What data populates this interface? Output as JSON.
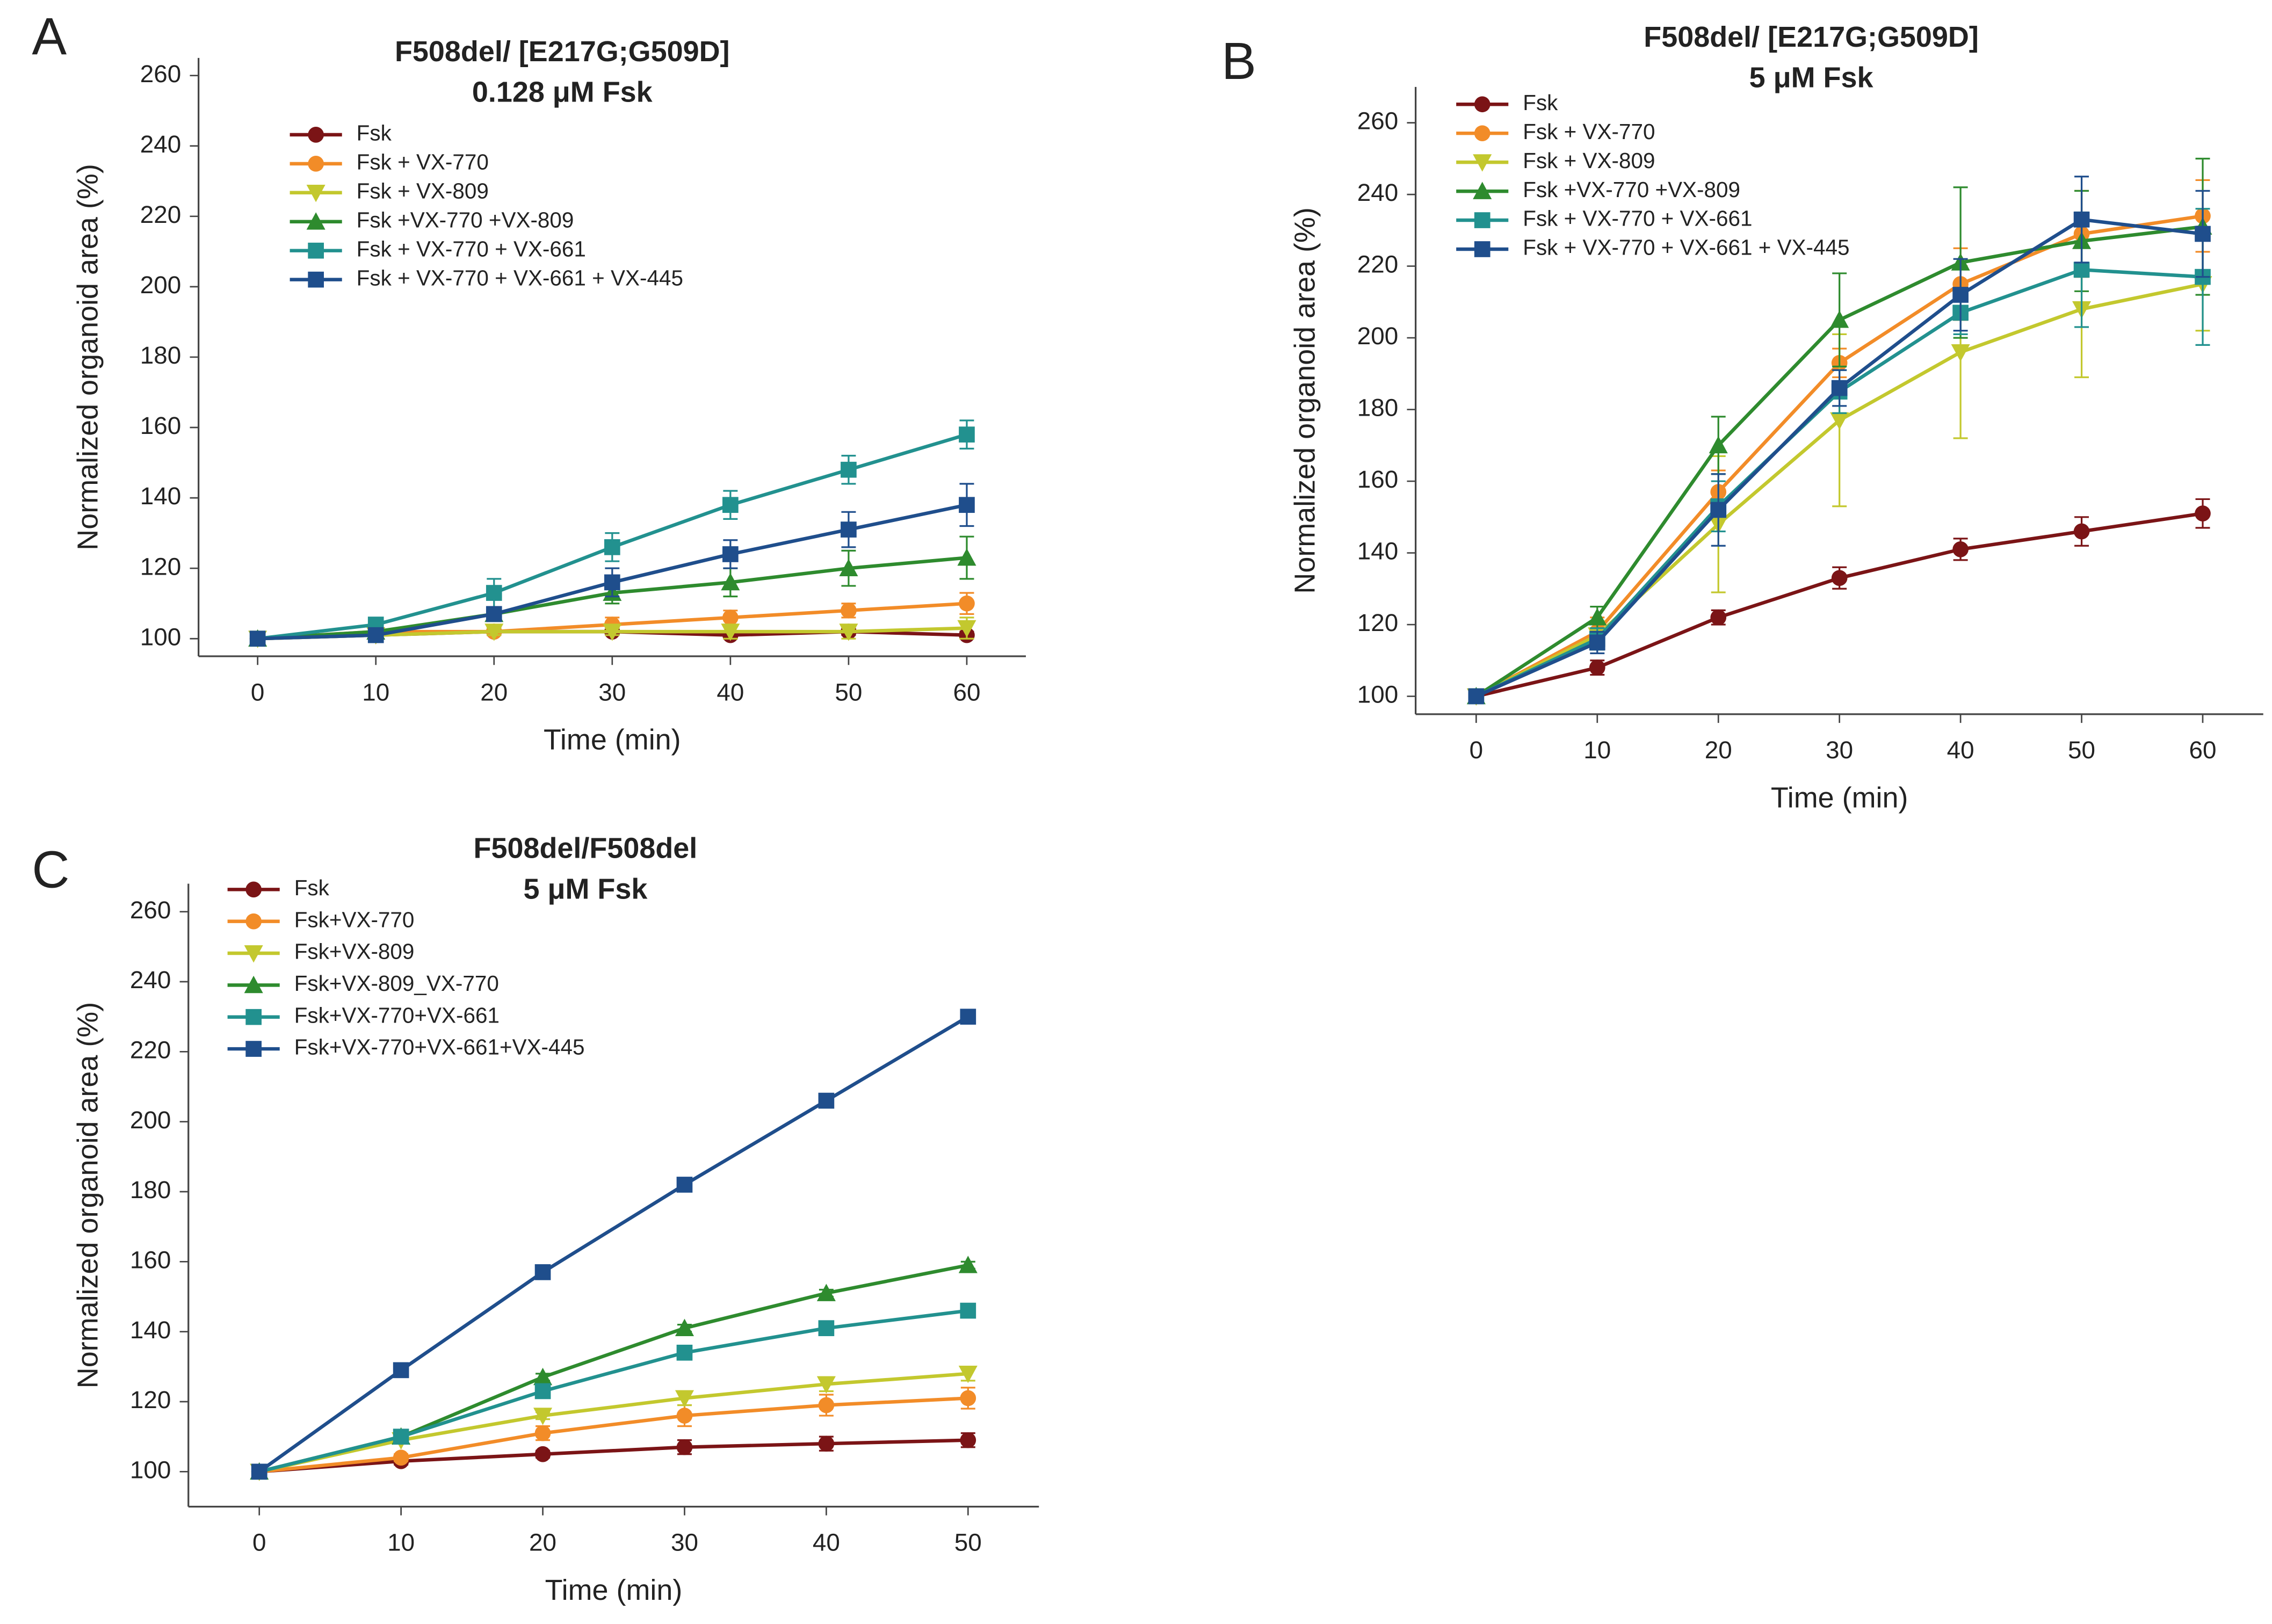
{
  "chart_data": [
    {
      "type": "line",
      "label": "A",
      "title": "F508del/ [E217G;G509D]",
      "subtitle": "0.128 μM Fsk",
      "x_label": "Time (min)",
      "y_label": "Normalized organoid area (%)",
      "x": [
        0,
        10,
        20,
        30,
        40,
        50,
        60
      ],
      "xlim": [
        -5,
        65
      ],
      "xticks": [
        0,
        10,
        20,
        30,
        40,
        50,
        60
      ],
      "ylim": [
        95,
        265
      ],
      "yticks": [
        100,
        120,
        140,
        160,
        180,
        200,
        220,
        240,
        260
      ],
      "series": [
        {
          "name": "Fsk",
          "color": "#7b1416",
          "marker": "circle",
          "values": [
            100,
            101,
            102,
            102,
            101,
            102,
            101
          ],
          "errors": [
            1,
            1,
            1,
            1,
            1,
            1,
            1
          ]
        },
        {
          "name": "Fsk + VX-770",
          "color": "#f28c28",
          "marker": "circle",
          "values": [
            100,
            102,
            102,
            104,
            106,
            108,
            110
          ],
          "errors": [
            1,
            1,
            1,
            2,
            2,
            2,
            3
          ]
        },
        {
          "name": "Fsk + VX-809",
          "color": "#c3c82e",
          "marker": "triangle-down",
          "values": [
            100,
            101,
            102,
            102,
            102,
            102,
            103
          ],
          "errors": [
            1,
            1,
            1,
            1,
            2,
            2,
            3
          ]
        },
        {
          "name": "Fsk +VX-770 +VX-809",
          "color": "#2e8b2e",
          "marker": "triangle-up",
          "values": [
            100,
            102,
            107,
            113,
            116,
            120,
            123
          ],
          "errors": [
            1,
            1,
            2,
            3,
            4,
            5,
            6
          ]
        },
        {
          "name": "Fsk + VX-770 + VX-661",
          "color": "#22918f",
          "marker": "square",
          "values": [
            100,
            104,
            113,
            126,
            138,
            148,
            158
          ],
          "errors": [
            1,
            1,
            4,
            4,
            4,
            4,
            4
          ]
        },
        {
          "name": "Fsk + VX-770 + VX-661 + VX-445",
          "color": "#1f4e8c",
          "marker": "square",
          "values": [
            100,
            101,
            107,
            116,
            124,
            131,
            138
          ],
          "errors": [
            1,
            1,
            2,
            4,
            4,
            5,
            6
          ]
        }
      ]
    },
    {
      "type": "line",
      "label": "B",
      "title": "F508del/ [E217G;G509D]",
      "subtitle": "5 μM Fsk",
      "x_label": "Time (min)",
      "y_label": "Normalized organoid area (%)",
      "x": [
        0,
        10,
        20,
        30,
        40,
        50,
        60
      ],
      "xlim": [
        -5,
        65
      ],
      "xticks": [
        0,
        10,
        20,
        30,
        40,
        50,
        60
      ],
      "ylim": [
        95,
        270
      ],
      "yticks": [
        100,
        120,
        140,
        160,
        180,
        200,
        220,
        240,
        260
      ],
      "series": [
        {
          "name": "Fsk",
          "color": "#7b1416",
          "marker": "circle",
          "values": [
            100,
            108,
            122,
            133,
            141,
            146,
            151
          ],
          "errors": [
            1,
            2,
            2,
            3,
            3,
            4,
            4
          ]
        },
        {
          "name": "Fsk + VX-770",
          "color": "#f28c28",
          "marker": "circle",
          "values": [
            100,
            118,
            157,
            193,
            215,
            229,
            234
          ],
          "errors": [
            1,
            4,
            6,
            4,
            10,
            12,
            10
          ]
        },
        {
          "name": "Fsk + VX-809",
          "color": "#c3c82e",
          "marker": "triangle-down",
          "values": [
            100,
            117,
            148,
            177,
            196,
            208,
            215
          ],
          "errors": [
            1,
            4,
            19,
            24,
            24,
            19,
            13
          ]
        },
        {
          "name": "Fsk +VX-770 +VX-809",
          "color": "#2e8b2e",
          "marker": "triangle-up",
          "values": [
            100,
            122,
            170,
            205,
            221,
            227,
            231
          ],
          "errors": [
            1,
            3,
            8,
            13,
            21,
            14,
            19
          ]
        },
        {
          "name": "Fsk + VX-770 + VX-661",
          "color": "#22918f",
          "marker": "square",
          "values": [
            100,
            116,
            153,
            185,
            207,
            219,
            217
          ],
          "errors": [
            1,
            3,
            7,
            6,
            6,
            16,
            19
          ]
        },
        {
          "name": "Fsk + VX-770 + VX-661 + VX-445",
          "color": "#1f4e8c",
          "marker": "square",
          "values": [
            100,
            115,
            152,
            186,
            212,
            233,
            229
          ],
          "errors": [
            1,
            3,
            10,
            5,
            10,
            12,
            12
          ]
        }
      ]
    },
    {
      "type": "line",
      "label": "C",
      "title": "F508del/F508del",
      "subtitle": "5 μM Fsk",
      "x_label": "Time (min)",
      "y_label": "Normalized organoid area (%)",
      "x": [
        0,
        10,
        20,
        30,
        40,
        50
      ],
      "xlim": [
        -5,
        55
      ],
      "xticks": [
        0,
        10,
        20,
        30,
        40,
        50
      ],
      "ylim": [
        90,
        268
      ],
      "yticks": [
        100,
        120,
        140,
        160,
        180,
        200,
        220,
        240,
        260
      ],
      "series": [
        {
          "name": "Fsk",
          "color": "#7b1416",
          "marker": "circle",
          "values": [
            100,
            103,
            105,
            107,
            108,
            109
          ],
          "errors": [
            1,
            1,
            1,
            2,
            2,
            2
          ]
        },
        {
          "name": "Fsk+VX-770",
          "color": "#f28c28",
          "marker": "circle",
          "values": [
            100,
            104,
            111,
            116,
            119,
            121
          ],
          "errors": [
            1,
            1,
            2,
            3,
            3,
            3
          ]
        },
        {
          "name": "Fsk+VX-809",
          "color": "#c3c82e",
          "marker": "triangle-down",
          "values": [
            100,
            109,
            116,
            121,
            125,
            128
          ],
          "errors": [
            1,
            1,
            1,
            2,
            2,
            2
          ]
        },
        {
          "name": "Fsk+VX-809_VX-770",
          "color": "#2e8b2e",
          "marker": "triangle-up",
          "values": [
            100,
            110,
            127,
            141,
            151,
            159
          ],
          "errors": [
            1,
            1,
            1,
            1,
            1,
            1
          ]
        },
        {
          "name": "Fsk+VX-770+VX-661",
          "color": "#22918f",
          "marker": "square",
          "values": [
            100,
            110,
            123,
            134,
            141,
            146
          ],
          "errors": [
            1,
            1,
            1,
            1,
            1,
            1
          ]
        },
        {
          "name": "Fsk+VX-770+VX-661+VX-445",
          "color": "#1f4e8c",
          "marker": "square",
          "values": [
            100,
            129,
            157,
            182,
            206,
            230
          ],
          "errors": [
            1,
            1,
            1,
            1,
            1,
            1
          ]
        }
      ]
    }
  ]
}
